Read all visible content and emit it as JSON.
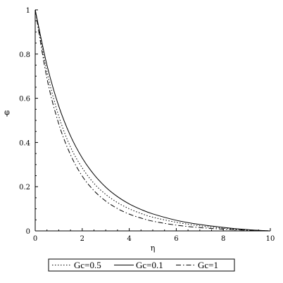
{
  "chart_data": {
    "type": "line",
    "title": "",
    "xlabel": "η",
    "ylabel": "φ",
    "xlim": [
      0,
      10
    ],
    "ylim": [
      0,
      1
    ],
    "xticks": [
      "0",
      "2",
      "4",
      "6",
      "8",
      "10"
    ],
    "yticks": [
      "0",
      "0.2",
      "0.4",
      "0.6",
      "0.8",
      "1"
    ],
    "grid": false,
    "legend_placement": "bottom",
    "series": [
      {
        "name": "Gc=0.5",
        "style": "dotted",
        "color": "#000000",
        "x": [
          0,
          0.5,
          1,
          1.5,
          2,
          2.5,
          3,
          3.5,
          4,
          4.5,
          5,
          6,
          7,
          8,
          9,
          10
        ],
        "y": [
          1.0,
          0.72,
          0.52,
          0.38,
          0.285,
          0.215,
          0.165,
          0.128,
          0.1,
          0.079,
          0.062,
          0.039,
          0.023,
          0.012,
          0.004,
          0.0
        ]
      },
      {
        "name": "Gc=0.1",
        "style": "solid",
        "color": "#000000",
        "x": [
          0,
          0.5,
          1,
          1.5,
          2,
          2.5,
          3,
          3.5,
          4,
          4.5,
          5,
          6,
          7,
          8,
          9,
          10
        ],
        "y": [
          1.0,
          0.75,
          0.565,
          0.43,
          0.33,
          0.255,
          0.198,
          0.155,
          0.122,
          0.097,
          0.077,
          0.048,
          0.029,
          0.016,
          0.006,
          0.0
        ]
      },
      {
        "name": "Gc=1",
        "style": "dashdot",
        "color": "#000000",
        "x": [
          0,
          0.5,
          1,
          1.5,
          2,
          2.5,
          3,
          3.5,
          4,
          4.5,
          5,
          6,
          7,
          8,
          9,
          10
        ],
        "y": [
          1.0,
          0.69,
          0.485,
          0.345,
          0.248,
          0.182,
          0.135,
          0.101,
          0.076,
          0.058,
          0.044,
          0.026,
          0.015,
          0.008,
          0.003,
          0.0
        ]
      }
    ]
  }
}
